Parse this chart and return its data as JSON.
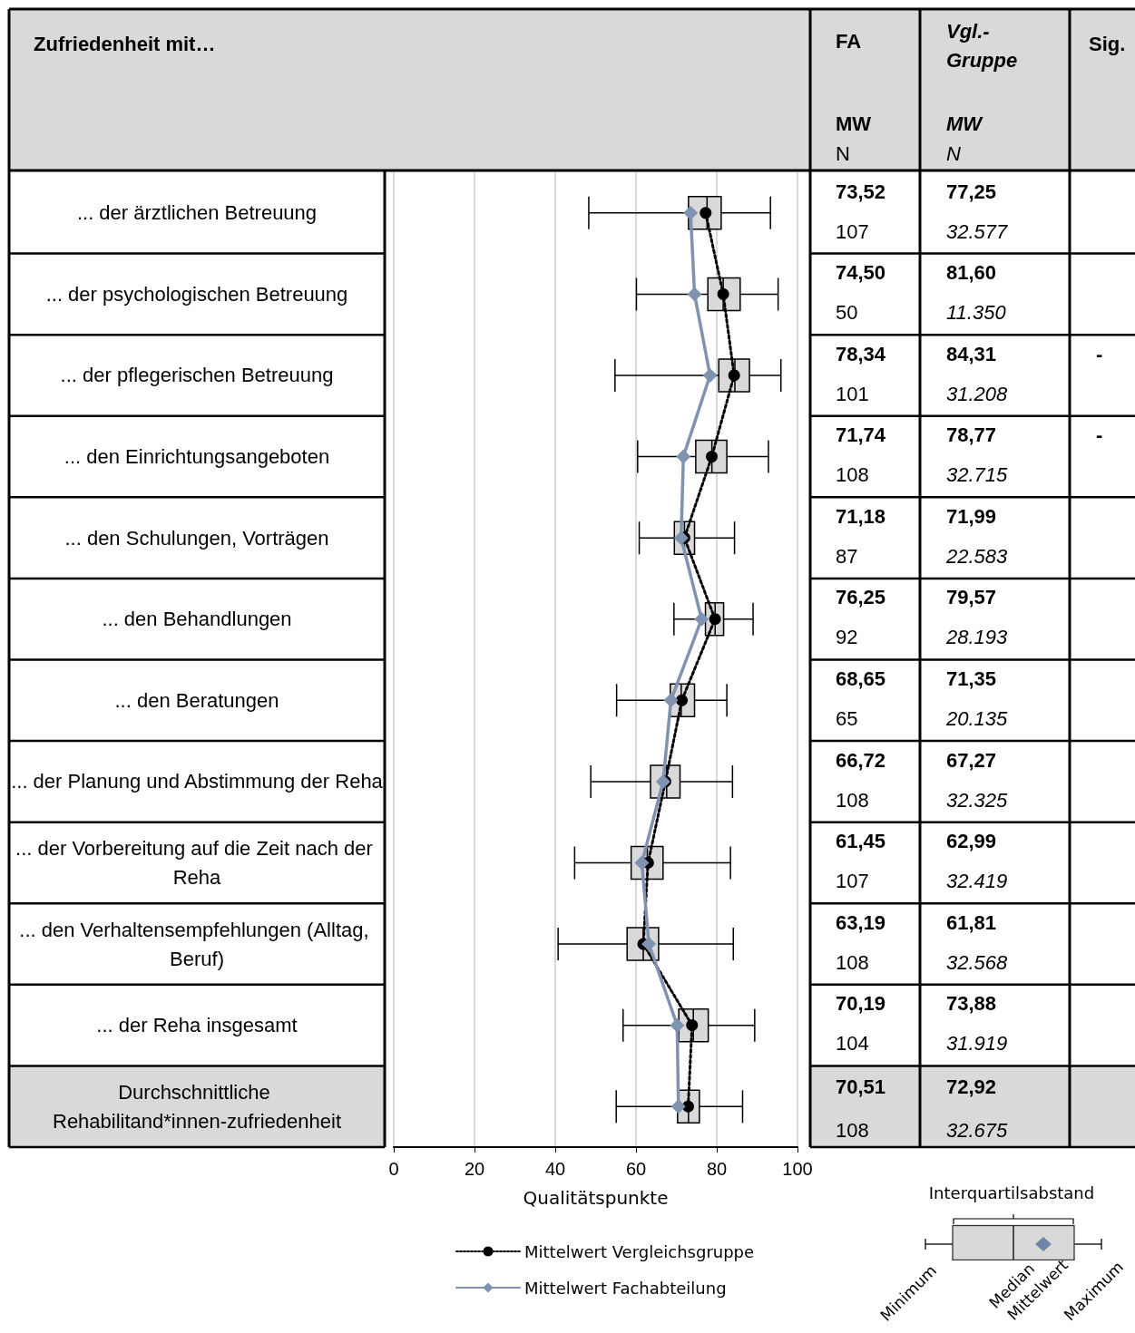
{
  "chart_data": {
    "type": "box",
    "orientation": "horizontal",
    "categories": [
      "... der ärztlichen Betreuung",
      "... der psychologischen Betreuung",
      "... der pflegerischen Betreuung",
      "... den Einrichtungsangeboten",
      "... den Schulungen, Vorträgen",
      "... den Behandlungen",
      "... den Beratungen",
      "... der Planung und Abstimmung der Reha",
      "... der Vorbereitung auf die Zeit nach der Reha",
      "... den Verhaltensempfehlungen (Alltag, Beruf)",
      "... der Reha insgesamt",
      "Durchschnittliche Rehabilitand*innen-zufriedenheit"
    ],
    "series": [
      {
        "color": "#d9d9d9",
        "boxes": [
          {
            "low": 48.3,
            "q1": 73.0,
            "median": 77.6,
            "q3": 81.1,
            "high": 93.3
          },
          {
            "low": 60.1,
            "q1": 77.8,
            "median": 81.6,
            "q3": 85.8,
            "high": 95.2
          },
          {
            "low": 54.8,
            "q1": 80.5,
            "median": 84.5,
            "q3": 88.1,
            "high": 95.9
          },
          {
            "low": 60.4,
            "q1": 74.8,
            "median": 78.8,
            "q3": 82.5,
            "high": 92.8
          },
          {
            "low": 60.8,
            "q1": 69.5,
            "median": 72.0,
            "q3": 74.5,
            "high": 84.4
          },
          {
            "low": 69.4,
            "q1": 77.2,
            "median": 79.6,
            "q3": 81.7,
            "high": 89.0
          },
          {
            "low": 55.2,
            "q1": 68.5,
            "median": 71.2,
            "q3": 74.5,
            "high": 82.5
          },
          {
            "low": 48.8,
            "q1": 63.6,
            "median": 67.6,
            "q3": 70.9,
            "high": 83.9
          },
          {
            "low": 44.8,
            "q1": 58.8,
            "median": 62.8,
            "q3": 66.7,
            "high": 83.4
          },
          {
            "low": 40.7,
            "q1": 57.8,
            "median": 61.8,
            "q3": 65.6,
            "high": 84.1
          },
          {
            "low": 56.8,
            "q1": 70.6,
            "median": 74.2,
            "q3": 77.9,
            "high": 89.4
          },
          {
            "low": 55.1,
            "q1": 70.3,
            "median": 73.0,
            "q3": 75.7,
            "high": 86.4
          }
        ]
      },
      {
        "type": "line",
        "name": "Mittelwert Vergleichsgruppe",
        "color": "#000000",
        "marker": "circle",
        "line_style": "dotted",
        "values": [
          77.25,
          81.6,
          84.31,
          78.77,
          71.99,
          79.57,
          71.35,
          67.27,
          62.99,
          61.81,
          73.88,
          72.92
        ],
        "value_labels": [
          "77,25",
          "81,60",
          "84,31",
          "78,77",
          "71,99",
          "79,57",
          "71,35",
          "67,27",
          "62,99",
          "61,81",
          "73,88",
          "72,92"
        ]
      },
      {
        "type": "line",
        "name": "Mittelwert Fachabteilung",
        "color": "#7f93b0",
        "marker": "diamond",
        "line_style": "solid",
        "values": [
          73.52,
          74.5,
          78.34,
          71.74,
          71.18,
          76.25,
          68.65,
          66.72,
          61.45,
          63.19,
          70.19,
          70.51
        ],
        "value_labels": [
          "73,52",
          "74,50",
          "78,34",
          "71,74",
          "71,18",
          "76,25",
          "68,65",
          "66,72",
          "61,45",
          "63,19",
          "70,19",
          "70,51"
        ]
      }
    ],
    "xlim": [
      0,
      100
    ],
    "xticks": [
      0,
      20,
      40,
      60,
      80,
      100
    ],
    "xlabel": "Qualitätspunkte",
    "grid": "x",
    "legend": "bottom",
    "annotations": [
      "Zufriedenheit mit…",
      "FA",
      "MW",
      "N",
      "Vgl.-Gruppe",
      "MW",
      "N",
      "Sig.",
      "107",
      "50",
      "101",
      "108",
      "87",
      "92",
      "65",
      "108",
      "107",
      "108",
      "104",
      "108",
      "32.577",
      "11.350",
      "31.208",
      "32.715",
      "22.583",
      "28.193",
      "20.135",
      "32.325",
      "32.419",
      "32.568",
      "31.919",
      "32.675",
      "-",
      "-",
      "Interquartilsabstand",
      "Minimum",
      "Median",
      "Mittelwert",
      "Maximum"
    ]
  }
}
